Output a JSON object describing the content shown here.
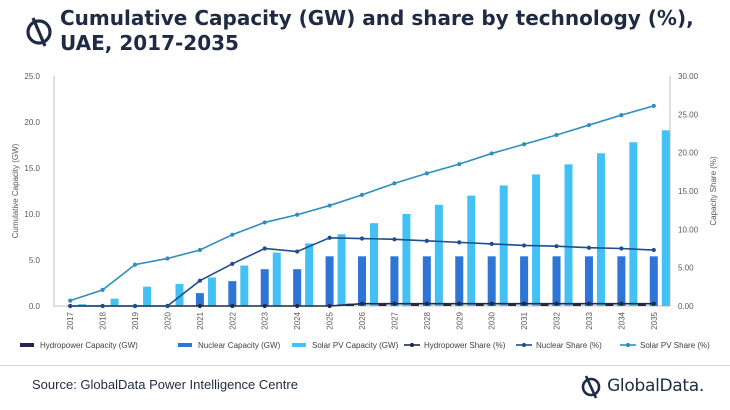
{
  "header": {
    "title": "Cumulative Capacity (GW) and share by technology (%), UAE, 2017-2035"
  },
  "footer": {
    "source": "Source: GlobalData Power Intelligence Centre",
    "brand": "GlobalData."
  },
  "colors": {
    "hydro_bar": "#2b2152",
    "nuclear_bar": "#2e75d6",
    "solar_bar": "#42c2f4",
    "hydro_line": "#1f2a44",
    "nuclear_line": "#1f4e8c",
    "solar_line": "#2d8fbf",
    "brand": "#1f2a44"
  },
  "chart_data": {
    "type": "bar",
    "categories": [
      "2017",
      "2018",
      "2019",
      "2020",
      "2021",
      "2022",
      "2023",
      "2024",
      "2025",
      "2026",
      "2027",
      "2028",
      "2029",
      "2030",
      "2031",
      "2032",
      "2033",
      "2034",
      "2035"
    ],
    "ylabel": "Cumulative Capacity (GW)",
    "y2label": "Capacity Share (%)",
    "ylim": [
      0,
      25
    ],
    "y2lim": [
      0,
      30
    ],
    "yticks": [
      "0.0",
      "5.0",
      "10.0",
      "15.0",
      "20.0",
      "25.0"
    ],
    "y2ticks": [
      "0.00",
      "5.00",
      "10.00",
      "15.00",
      "20.00",
      "25.00",
      "30.00"
    ],
    "grid": false,
    "legend_position": "bottom",
    "series": [
      {
        "name": "Hydropower Capacity (GW)",
        "kind": "bar",
        "axis": "left",
        "values": [
          0,
          0,
          0,
          0,
          0,
          0,
          0,
          0,
          0,
          0.25,
          0.25,
          0.25,
          0.25,
          0.25,
          0.25,
          0.25,
          0.25,
          0.25,
          0.25
        ]
      },
      {
        "name": "Nuclear Capacity (GW)",
        "kind": "bar",
        "axis": "left",
        "values": [
          0,
          0,
          0,
          0,
          1.4,
          2.7,
          4.0,
          4.0,
          5.4,
          5.4,
          5.4,
          5.4,
          5.4,
          5.4,
          5.4,
          5.4,
          5.4,
          5.4,
          5.4
        ]
      },
      {
        "name": "Solar PV Capacity (GW)",
        "kind": "bar",
        "axis": "left",
        "values": [
          0.2,
          0.8,
          2.1,
          2.4,
          3.1,
          4.4,
          5.8,
          6.8,
          7.8,
          9.0,
          10.0,
          11.0,
          12.0,
          13.1,
          14.3,
          15.4,
          16.6,
          17.8,
          19.1
        ]
      },
      {
        "name": "Hydropower Share (%)",
        "kind": "line",
        "axis": "right",
        "values": [
          0,
          0,
          0,
          0,
          0,
          0,
          0,
          0,
          0,
          0.3,
          0.3,
          0.3,
          0.3,
          0.3,
          0.3,
          0.3,
          0.3,
          0.3,
          0.3
        ]
      },
      {
        "name": "Nuclear Share (%)",
        "kind": "line",
        "axis": "right",
        "values": [
          0,
          0,
          0,
          0,
          3.3,
          5.5,
          7.5,
          7.1,
          8.9,
          8.8,
          8.7,
          8.5,
          8.3,
          8.1,
          7.9,
          7.8,
          7.6,
          7.5,
          7.3
        ]
      },
      {
        "name": "Solar PV Share (%)",
        "kind": "line",
        "axis": "right",
        "values": [
          0.7,
          2.1,
          5.4,
          6.2,
          7.3,
          9.3,
          10.9,
          11.9,
          13.1,
          14.5,
          16.0,
          17.3,
          18.5,
          19.9,
          21.1,
          22.3,
          23.6,
          24.9,
          26.1
        ]
      }
    ]
  }
}
